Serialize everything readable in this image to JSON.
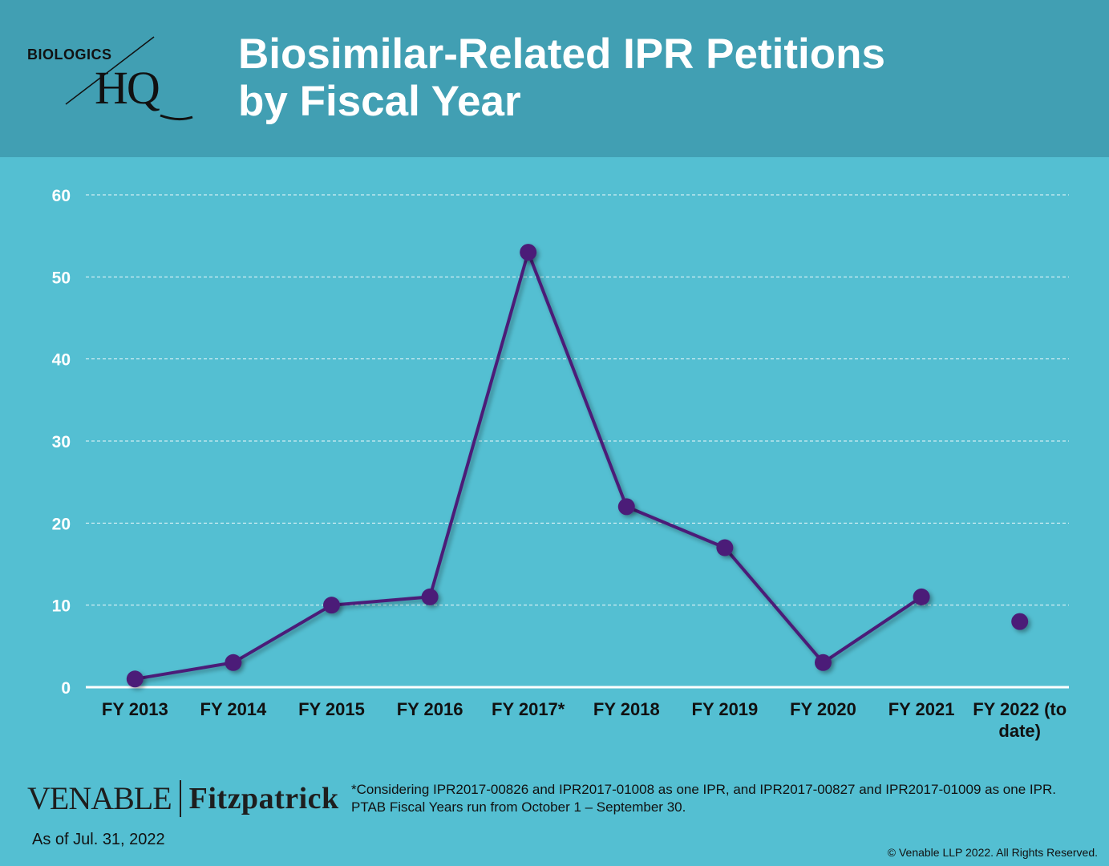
{
  "header": {
    "title_line1": "Biosimilar-Related IPR Petitions",
    "title_line2": "by Fiscal Year",
    "logo_small": "BIOLOGICS",
    "logo_big": "HQ",
    "background": "#419fb3"
  },
  "chart_data": {
    "type": "line",
    "title": "Biosimilar-Related IPR Petitions by Fiscal Year",
    "categories": [
      "FY 2013",
      "FY 2014",
      "FY 2015",
      "FY 2016",
      "FY 2017*",
      "FY 2018",
      "FY 2019",
      "FY 2020",
      "FY 2021",
      "FY 2022 (to date)"
    ],
    "category_label_lines": [
      [
        "FY 2013"
      ],
      [
        "FY 2014"
      ],
      [
        "FY 2015"
      ],
      [
        "FY 2016"
      ],
      [
        "FY 2017*"
      ],
      [
        "FY 2018"
      ],
      [
        "FY 2019"
      ],
      [
        "FY 2020"
      ],
      [
        "FY 2021"
      ],
      [
        "FY 2022 (to",
        "date)"
      ]
    ],
    "values": [
      1,
      3,
      10,
      11,
      53,
      22,
      17,
      3,
      11,
      8
    ],
    "line_connected_through_index": 8,
    "ylim": [
      0,
      60
    ],
    "yticks": [
      0,
      10,
      20,
      30,
      40,
      50,
      60
    ],
    "xlabel": "",
    "ylabel": "",
    "grid": "horizontal dashed",
    "line_color": "#4b1f78",
    "marker_color": "#4b1f78",
    "background": "#54bfd2"
  },
  "footer": {
    "logo_venable": "VENABLE",
    "logo_fitzpatrick": "Fitzpatrick",
    "as_of": "As of Jul. 31, 2022",
    "note_line1": "*Considering IPR2017-00826 and IPR2017-01008 as one IPR, and IPR2017-00827 and IPR2017-01009 as one IPR.",
    "note_line2": "PTAB Fiscal Years run from October 1 – September 30.",
    "copyright": "© Venable LLP 2022. All Rights Reserved."
  }
}
